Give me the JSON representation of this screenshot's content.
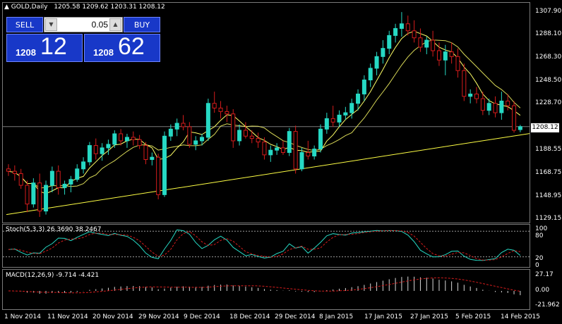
{
  "chart": {
    "symbol_title": "GOLD,Daily",
    "ohlc": "1205.58 1209.62 1203.31 1208.12",
    "current_price": "1208.12",
    "price_axis": [
      "1307.90",
      "1288.10",
      "1268.30",
      "1248.50",
      "1228.70",
      "1188.55",
      "1168.75",
      "1148.95",
      "1129.15"
    ],
    "date_axis": [
      "1 Nov 2014",
      "11 Nov 2014",
      "20 Nov 2014",
      "29 Nov 2014",
      "9 Dec 2014",
      "18 Dec 2014",
      "29 Dec 2014",
      "8 Jan 2015",
      "17 Jan 2015",
      "27 Jan 2015",
      "5 Feb 2015",
      "14 Feb 2015"
    ],
    "colors": {
      "bull": "#26d9c4",
      "bear": "#d61c1c",
      "ma": "#ffff66",
      "trendline": "#ffff44",
      "grid": "#7a7a7a"
    }
  },
  "trade_panel": {
    "sell_label": "SELL",
    "buy_label": "BUY",
    "lot_value": "0.05",
    "sell_prefix": "1208",
    "sell_big": "12",
    "buy_prefix": "1208",
    "buy_big": "62"
  },
  "stochastic": {
    "title": "Stoch(5,3,3) 26.3690 38.2467",
    "axis": [
      "100",
      "80",
      "20",
      "0"
    ]
  },
  "macd": {
    "title": "MACD(12,26,9) -9.714 -4.421",
    "axis": [
      "27.17",
      "0.00",
      "-21.962"
    ]
  },
  "chart_data": {
    "type": "candlestick",
    "y_range": [
      1129.15,
      1307.9
    ],
    "candles": [
      {
        "o": 1172,
        "h": 1176,
        "l": 1166,
        "c": 1170
      },
      {
        "o": 1170,
        "h": 1175,
        "l": 1162,
        "c": 1168
      },
      {
        "o": 1168,
        "h": 1172,
        "l": 1155,
        "c": 1158
      },
      {
        "o": 1158,
        "h": 1162,
        "l": 1135,
        "c": 1142
      },
      {
        "o": 1142,
        "h": 1164,
        "l": 1139,
        "c": 1160
      },
      {
        "o": 1160,
        "h": 1168,
        "l": 1131,
        "c": 1136
      },
      {
        "o": 1136,
        "h": 1162,
        "l": 1133,
        "c": 1158
      },
      {
        "o": 1158,
        "h": 1174,
        "l": 1152,
        "c": 1170
      },
      {
        "o": 1170,
        "h": 1175,
        "l": 1150,
        "c": 1156
      },
      {
        "o": 1156,
        "h": 1162,
        "l": 1150,
        "c": 1159
      },
      {
        "o": 1159,
        "h": 1166,
        "l": 1152,
        "c": 1163
      },
      {
        "o": 1163,
        "h": 1176,
        "l": 1161,
        "c": 1172
      },
      {
        "o": 1172,
        "h": 1182,
        "l": 1168,
        "c": 1178
      },
      {
        "o": 1178,
        "h": 1195,
        "l": 1175,
        "c": 1192
      },
      {
        "o": 1192,
        "h": 1198,
        "l": 1180,
        "c": 1185
      },
      {
        "o": 1185,
        "h": 1194,
        "l": 1179,
        "c": 1190
      },
      {
        "o": 1190,
        "h": 1197,
        "l": 1184,
        "c": 1193
      },
      {
        "o": 1193,
        "h": 1205,
        "l": 1190,
        "c": 1202
      },
      {
        "o": 1202,
        "h": 1206,
        "l": 1192,
        "c": 1196
      },
      {
        "o": 1196,
        "h": 1202,
        "l": 1190,
        "c": 1199
      },
      {
        "o": 1199,
        "h": 1204,
        "l": 1192,
        "c": 1197
      },
      {
        "o": 1197,
        "h": 1201,
        "l": 1189,
        "c": 1192
      },
      {
        "o": 1192,
        "h": 1195,
        "l": 1176,
        "c": 1180
      },
      {
        "o": 1180,
        "h": 1186,
        "l": 1175,
        "c": 1182
      },
      {
        "o": 1182,
        "h": 1185,
        "l": 1146,
        "c": 1150
      },
      {
        "o": 1150,
        "h": 1204,
        "l": 1148,
        "c": 1200
      },
      {
        "o": 1200,
        "h": 1210,
        "l": 1196,
        "c": 1206
      },
      {
        "o": 1206,
        "h": 1215,
        "l": 1200,
        "c": 1211
      },
      {
        "o": 1211,
        "h": 1218,
        "l": 1205,
        "c": 1208
      },
      {
        "o": 1208,
        "h": 1212,
        "l": 1190,
        "c": 1193
      },
      {
        "o": 1193,
        "h": 1200,
        "l": 1188,
        "c": 1196
      },
      {
        "o": 1196,
        "h": 1202,
        "l": 1192,
        "c": 1199
      },
      {
        "o": 1199,
        "h": 1232,
        "l": 1196,
        "c": 1228
      },
      {
        "o": 1228,
        "h": 1238,
        "l": 1220,
        "c": 1224
      },
      {
        "o": 1224,
        "h": 1230,
        "l": 1215,
        "c": 1221
      },
      {
        "o": 1221,
        "h": 1226,
        "l": 1212,
        "c": 1219
      },
      {
        "o": 1219,
        "h": 1223,
        "l": 1190,
        "c": 1196
      },
      {
        "o": 1196,
        "h": 1210,
        "l": 1192,
        "c": 1205
      },
      {
        "o": 1205,
        "h": 1212,
        "l": 1198,
        "c": 1200
      },
      {
        "o": 1200,
        "h": 1205,
        "l": 1194,
        "c": 1198
      },
      {
        "o": 1198,
        "h": 1203,
        "l": 1190,
        "c": 1195
      },
      {
        "o": 1195,
        "h": 1199,
        "l": 1180,
        "c": 1184
      },
      {
        "o": 1184,
        "h": 1192,
        "l": 1178,
        "c": 1188
      },
      {
        "o": 1188,
        "h": 1194,
        "l": 1184,
        "c": 1190
      },
      {
        "o": 1190,
        "h": 1196,
        "l": 1184,
        "c": 1186
      },
      {
        "o": 1186,
        "h": 1207,
        "l": 1183,
        "c": 1204
      },
      {
        "o": 1204,
        "h": 1209,
        "l": 1168,
        "c": 1172
      },
      {
        "o": 1172,
        "h": 1190,
        "l": 1170,
        "c": 1186
      },
      {
        "o": 1186,
        "h": 1196,
        "l": 1180,
        "c": 1183
      },
      {
        "o": 1183,
        "h": 1192,
        "l": 1180,
        "c": 1189
      },
      {
        "o": 1189,
        "h": 1210,
        "l": 1186,
        "c": 1206
      },
      {
        "o": 1206,
        "h": 1220,
        "l": 1202,
        "c": 1215
      },
      {
        "o": 1215,
        "h": 1226,
        "l": 1208,
        "c": 1212
      },
      {
        "o": 1212,
        "h": 1222,
        "l": 1208,
        "c": 1218
      },
      {
        "o": 1218,
        "h": 1225,
        "l": 1214,
        "c": 1220
      },
      {
        "o": 1220,
        "h": 1232,
        "l": 1215,
        "c": 1228
      },
      {
        "o": 1228,
        "h": 1240,
        "l": 1222,
        "c": 1236
      },
      {
        "o": 1236,
        "h": 1252,
        "l": 1230,
        "c": 1248
      },
      {
        "o": 1248,
        "h": 1262,
        "l": 1242,
        "c": 1258
      },
      {
        "o": 1258,
        "h": 1272,
        "l": 1252,
        "c": 1268
      },
      {
        "o": 1268,
        "h": 1282,
        "l": 1262,
        "c": 1275
      },
      {
        "o": 1275,
        "h": 1290,
        "l": 1270,
        "c": 1286
      },
      {
        "o": 1286,
        "h": 1296,
        "l": 1280,
        "c": 1292
      },
      {
        "o": 1292,
        "h": 1306,
        "l": 1285,
        "c": 1296
      },
      {
        "o": 1296,
        "h": 1303,
        "l": 1286,
        "c": 1290
      },
      {
        "o": 1290,
        "h": 1299,
        "l": 1280,
        "c": 1284
      },
      {
        "o": 1284,
        "h": 1292,
        "l": 1272,
        "c": 1276
      },
      {
        "o": 1276,
        "h": 1285,
        "l": 1270,
        "c": 1282
      },
      {
        "o": 1282,
        "h": 1290,
        "l": 1268,
        "c": 1273
      },
      {
        "o": 1273,
        "h": 1280,
        "l": 1260,
        "c": 1265
      },
      {
        "o": 1265,
        "h": 1278,
        "l": 1252,
        "c": 1272
      },
      {
        "o": 1272,
        "h": 1280,
        "l": 1262,
        "c": 1268
      },
      {
        "o": 1268,
        "h": 1275,
        "l": 1250,
        "c": 1256
      },
      {
        "o": 1256,
        "h": 1262,
        "l": 1230,
        "c": 1234
      },
      {
        "o": 1234,
        "h": 1240,
        "l": 1228,
        "c": 1236
      },
      {
        "o": 1236,
        "h": 1242,
        "l": 1228,
        "c": 1232
      },
      {
        "o": 1232,
        "h": 1238,
        "l": 1218,
        "c": 1222
      },
      {
        "o": 1222,
        "h": 1232,
        "l": 1218,
        "c": 1228
      },
      {
        "o": 1228,
        "h": 1234,
        "l": 1216,
        "c": 1220
      },
      {
        "o": 1220,
        "h": 1238,
        "l": 1214,
        "c": 1230
      },
      {
        "o": 1230,
        "h": 1236,
        "l": 1222,
        "c": 1226
      },
      {
        "o": 1226,
        "h": 1230,
        "l": 1203,
        "c": 1205
      },
      {
        "o": 1205.58,
        "h": 1209.62,
        "l": 1203.31,
        "c": 1208.12
      }
    ],
    "trendline": [
      [
        0,
        1133
      ],
      [
        82,
        1201
      ]
    ]
  }
}
